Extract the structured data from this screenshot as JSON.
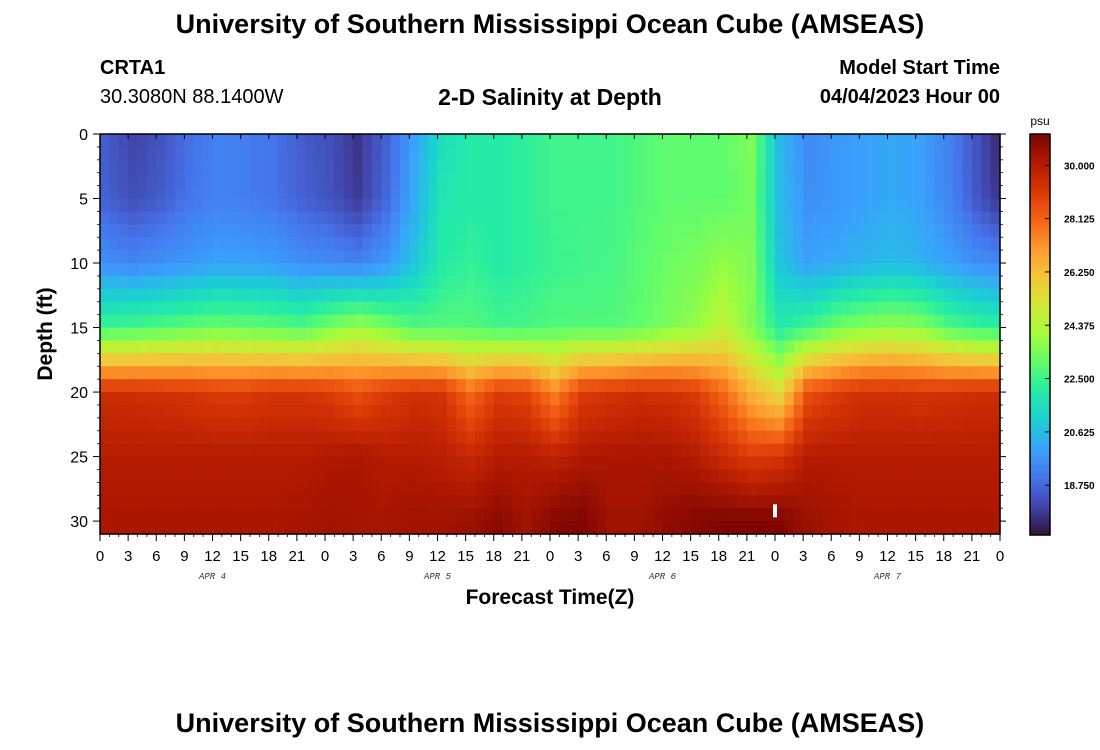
{
  "header": {
    "title": "University of Southern Mississippi Ocean Cube (AMSEAS)",
    "station_name": "CRTA1",
    "coordinates": "30.3080N  88.1400W",
    "subtitle": "2-D Salinity at Depth",
    "model_start_label": "Model Start Time",
    "model_start_value": "04/04/2023 Hour 00"
  },
  "footer": {
    "title": "University of Southern Mississippi Ocean Cube (AMSEAS)"
  },
  "chart_data": {
    "type": "heatmap",
    "title": "2-D Salinity at Depth",
    "xlabel": "Forecast Time(Z)",
    "ylabel": "Depth (ft)",
    "x_hours": [
      0,
      3,
      6,
      9,
      12,
      15,
      18,
      21,
      24,
      27,
      30,
      33,
      36,
      39,
      42,
      45,
      48,
      51,
      54,
      57,
      60,
      63,
      66,
      69,
      72,
      75,
      78,
      81,
      84,
      87,
      90,
      93,
      96
    ],
    "x_tick_labels": [
      "0",
      "3",
      "6",
      "9",
      "12",
      "15",
      "18",
      "21",
      "0",
      "3",
      "6",
      "9",
      "12",
      "15",
      "18",
      "21",
      "0",
      "3",
      "6",
      "9",
      "12",
      "15",
      "18",
      "21",
      "0",
      "3",
      "6",
      "9",
      "12",
      "15",
      "18",
      "21",
      "0"
    ],
    "date_labels": [
      {
        "label": "APR 4",
        "hour": 12
      },
      {
        "label": "APR 5",
        "hour": 36
      },
      {
        "label": "APR 6",
        "hour": 60
      },
      {
        "label": "APR 7",
        "hour": 84
      }
    ],
    "y_ticks": [
      0,
      5,
      10,
      15,
      20,
      25,
      30
    ],
    "ylim": [
      0,
      31
    ],
    "xlim": [
      0,
      96
    ],
    "y_inverted": true,
    "colorbar": {
      "unit": "psu",
      "ticks": [
        "30.000",
        "28.125",
        "26.250",
        "24.375",
        "22.500",
        "20.625",
        "18.750"
      ],
      "tick_values": [
        30.0,
        28.125,
        26.25,
        24.375,
        22.5,
        20.625,
        18.75
      ],
      "range": [
        17.0,
        31.1
      ],
      "colors": [
        "#30123b",
        "#4145ab",
        "#4675ed",
        "#39a2fc",
        "#1bcfd4",
        "#24eca6",
        "#61fc6c",
        "#a4fc3b",
        "#d1e834",
        "#f3c63a",
        "#fe9b2d",
        "#f36315",
        "#d93806",
        "#b11901",
        "#7a0402"
      ]
    },
    "salinity_rows_by_depth_ft": [
      0,
      5,
      10,
      15,
      20,
      25,
      30
    ],
    "salinity_grid": [
      [
        18.5,
        18.0,
        18.3,
        18.9,
        19.3,
        19.2,
        19.0,
        18.5,
        18.2,
        17.7,
        18.6,
        20.0,
        21.5,
        22.0,
        22.0,
        22.2,
        22.5,
        22.5,
        22.5,
        22.8,
        23.0,
        23.0,
        23.0,
        23.5,
        20.5,
        19.5,
        19.8,
        20.0,
        20.2,
        20.0,
        19.3,
        18.3,
        17.2
      ],
      [
        18.6,
        18.2,
        18.5,
        19.0,
        19.3,
        19.2,
        19.0,
        18.6,
        18.3,
        17.8,
        18.7,
        20.2,
        21.8,
        22.0,
        22.0,
        22.2,
        22.5,
        22.5,
        22.5,
        22.8,
        23.0,
        23.0,
        23.0,
        23.3,
        20.6,
        19.6,
        19.8,
        20.0,
        20.2,
        20.0,
        19.4,
        18.4,
        17.5
      ],
      [
        19.6,
        19.4,
        19.6,
        19.8,
        20.0,
        20.0,
        19.9,
        19.6,
        19.5,
        19.3,
        19.8,
        20.8,
        22.0,
        22.3,
        22.0,
        22.2,
        22.4,
        22.5,
        22.6,
        22.9,
        23.2,
        23.4,
        23.8,
        23.5,
        20.8,
        20.0,
        20.2,
        20.4,
        20.6,
        20.4,
        20.0,
        19.6,
        19.4
      ],
      [
        22.5,
        22.6,
        22.8,
        23.0,
        23.2,
        23.1,
        23.0,
        22.8,
        23.4,
        24.0,
        23.4,
        22.8,
        22.8,
        22.8,
        22.5,
        22.6,
        22.8,
        22.8,
        22.8,
        23.0,
        23.4,
        23.8,
        24.6,
        23.5,
        22.0,
        22.5,
        23.2,
        23.6,
        23.8,
        23.6,
        22.8,
        22.4,
        22.2
      ],
      [
        29.4,
        29.4,
        29.3,
        29.2,
        29.0,
        29.0,
        29.2,
        29.2,
        29.0,
        28.5,
        29.0,
        29.3,
        29.2,
        28.0,
        29.0,
        28.8,
        27.5,
        29.0,
        29.2,
        29.4,
        29.3,
        29.0,
        28.0,
        26.5,
        25.5,
        28.5,
        29.0,
        29.3,
        29.3,
        29.2,
        29.3,
        29.4,
        29.4
      ],
      [
        30.0,
        30.0,
        30.0,
        30.0,
        30.0,
        30.0,
        30.0,
        30.0,
        30.1,
        30.2,
        30.0,
        30.0,
        29.9,
        29.6,
        30.0,
        30.0,
        29.8,
        30.1,
        30.2,
        30.2,
        30.2,
        30.0,
        29.5,
        29.0,
        29.2,
        30.0,
        30.0,
        30.0,
        30.0,
        30.0,
        30.0,
        30.0,
        30.0
      ],
      [
        30.2,
        30.2,
        30.2,
        30.2,
        30.2,
        30.2,
        30.2,
        30.3,
        30.4,
        30.3,
        30.3,
        30.4,
        30.4,
        30.5,
        30.8,
        30.4,
        30.9,
        31.0,
        30.4,
        30.4,
        30.7,
        30.9,
        31.0,
        31.0,
        31.0,
        30.5,
        30.3,
        30.2,
        30.2,
        30.2,
        30.2,
        30.2,
        30.2
      ]
    ]
  }
}
